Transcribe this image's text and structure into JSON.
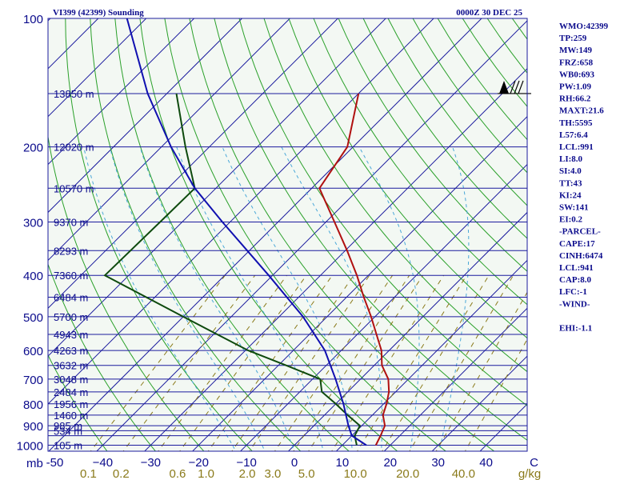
{
  "header": {
    "station": "VI399 (42399) Sounding",
    "time": "0000Z 30 DEC 25"
  },
  "indices": [
    "WMO:42399",
    "TP:259",
    "MW:149",
    "FRZ:658",
    "WB0:693",
    "PW:1.09",
    "RH:66.2",
    "MAXT:21.6",
    "TH:5595",
    "L57:6.4",
    "LCL:991",
    "LI:8.0",
    "SI:4.0",
    "TT:43",
    "KI:24",
    "SW:141",
    "EI:0.2",
    "-PARCEL-",
    "CAPE:17",
    "CINH:6474",
    "LCL:941",
    "CAP:8.0",
    "LFC:-1",
    "-WIND-",
    "",
    "EHI:-1.1"
  ],
  "colors": {
    "isobar": "#1b1b9e",
    "isotherm": "#1b1b9e",
    "dry_adiabat": "#2aa02a",
    "moist_adiabat": "#4aa8d8",
    "mixing_ratio": "#8a7a1a",
    "temperature": "#b01010",
    "dewpoint": "#0e4a0e",
    "parcel": "#1010b0",
    "panel_bg": "#f3f8f3"
  },
  "chart_data": {
    "type": "line",
    "title": "VI399 (42399) Sounding",
    "subtitle": "0000Z 30 DEC 25",
    "xlabel": "°C",
    "ylabel": "mb",
    "x_range": [
      -50,
      50
    ],
    "y_range": [
      1000,
      100
    ],
    "pressure_labels": [
      {
        "p": 100,
        "label": "100"
      },
      {
        "p": 200,
        "label": "200"
      },
      {
        "p": 300,
        "label": "300"
      },
      {
        "p": 400,
        "label": "400"
      },
      {
        "p": 500,
        "label": "500"
      },
      {
        "p": 600,
        "label": "600"
      },
      {
        "p": 700,
        "label": "700"
      },
      {
        "p": 800,
        "label": "800"
      },
      {
        "p": 900,
        "label": "900"
      },
      {
        "p": 1000,
        "label": "1000"
      }
    ],
    "mb_unit_label": "mb",
    "isobars": [
      150,
      200,
      250,
      300,
      350,
      400,
      450,
      500,
      550,
      600,
      650,
      700,
      750,
      800,
      850,
      900,
      925,
      950,
      1000
    ],
    "height_labels": [
      {
        "p": 150,
        "label": "13850 m"
      },
      {
        "p": 200,
        "label": "12020 m"
      },
      {
        "p": 250,
        "label": "10570 m"
      },
      {
        "p": 300,
        "label": "9370 m"
      },
      {
        "p": 350,
        "label": "8293 m"
      },
      {
        "p": 400,
        "label": "7360 m"
      },
      {
        "p": 450,
        "label": "6484 m"
      },
      {
        "p": 500,
        "label": "5700 m"
      },
      {
        "p": 550,
        "label": "4943 m"
      },
      {
        "p": 600,
        "label": "4263 m"
      },
      {
        "p": 650,
        "label": "3632 m"
      },
      {
        "p": 700,
        "label": "3048 m"
      },
      {
        "p": 750,
        "label": "2484 m"
      },
      {
        "p": 800,
        "label": "1956 m"
      },
      {
        "p": 850,
        "label": "1460 m"
      },
      {
        "p": 900,
        "label": "985 m"
      },
      {
        "p": 925,
        "label": "534 m"
      },
      {
        "p": 1000,
        "label": "105 m"
      }
    ],
    "temperature_ticks": [
      {
        "t": -50,
        "label": "-50"
      },
      {
        "t": -40,
        "label": "−40"
      },
      {
        "t": -30,
        "label": "−30"
      },
      {
        "t": -20,
        "label": "−20"
      },
      {
        "t": -10,
        "label": "−10"
      },
      {
        "t": 0,
        "label": "0"
      },
      {
        "t": 10,
        "label": "10"
      },
      {
        "t": 20,
        "label": "20"
      },
      {
        "t": 30,
        "label": "30"
      },
      {
        "t": 40,
        "label": "40"
      },
      {
        "t": 50,
        "label": "C"
      }
    ],
    "mixing_ratio_labels": [
      {
        "w": 0.1,
        "label": "0.1"
      },
      {
        "w": 0.2,
        "label": "0.2"
      },
      {
        "w": 0.6,
        "label": "0.6"
      },
      {
        "w": 1.0,
        "label": "1.0"
      },
      {
        "w": 2.0,
        "label": "2.0"
      },
      {
        "w": 3.0,
        "label": "3.0"
      },
      {
        "w": 5.0,
        "label": "5.0"
      },
      {
        "w": 10.0,
        "label": "10.0"
      },
      {
        "w": 20.0,
        "label": "20.0"
      },
      {
        "w": 40.0,
        "label": "40.0"
      }
    ],
    "mixing_ratio_unit": "g/kg",
    "series": [
      {
        "name": "Temperature",
        "points": [
          {
            "p": 1000,
            "t": 17.0
          },
          {
            "p": 950,
            "t": 16.0
          },
          {
            "p": 900,
            "t": 14.8
          },
          {
            "p": 850,
            "t": 12.2
          },
          {
            "p": 800,
            "t": 10.6
          },
          {
            "p": 750,
            "t": 8.6
          },
          {
            "p": 700,
            "t": 5.8
          },
          {
            "p": 650,
            "t": 1.6
          },
          {
            "p": 600,
            "t": -1.6
          },
          {
            "p": 550,
            "t": -6.0
          },
          {
            "p": 500,
            "t": -10.8
          },
          {
            "p": 450,
            "t": -16.4
          },
          {
            "p": 400,
            "t": -22.4
          },
          {
            "p": 350,
            "t": -29.6
          },
          {
            "p": 300,
            "t": -38.2
          },
          {
            "p": 250,
            "t": -48.4
          },
          {
            "p": 200,
            "t": -51.2
          },
          {
            "p": 150,
            "t": -60.0
          }
        ]
      },
      {
        "name": "Dewpoint",
        "points": [
          {
            "p": 1000,
            "t": 13.0
          },
          {
            "p": 950,
            "t": 10.6
          },
          {
            "p": 900,
            "t": 9.6
          },
          {
            "p": 850,
            "t": 4.8
          },
          {
            "p": 800,
            "t": 0.0
          },
          {
            "p": 750,
            "t": -5.4
          },
          {
            "p": 700,
            "t": -8.4
          },
          {
            "p": 650,
            "t": -18.4
          },
          {
            "p": 600,
            "t": -29.4
          },
          {
            "p": 500,
            "t": -50.0
          },
          {
            "p": 400,
            "t": -75.0
          },
          {
            "p": 300,
            "t": -74.6
          },
          {
            "p": 250,
            "t": -74.4
          },
          {
            "p": 200,
            "t": -85.0
          },
          {
            "p": 150,
            "t": -98.0
          }
        ]
      },
      {
        "name": "Parcel",
        "points": [
          {
            "p": 1000,
            "t": 15.0
          },
          {
            "p": 950,
            "t": 10.0
          },
          {
            "p": 900,
            "t": 7.2
          },
          {
            "p": 800,
            "t": 1.6
          },
          {
            "p": 700,
            "t": -5.2
          },
          {
            "p": 600,
            "t": -13.4
          },
          {
            "p": 500,
            "t": -25.0
          },
          {
            "p": 400,
            "t": -40.8
          },
          {
            "p": 300,
            "t": -61.6
          },
          {
            "p": 250,
            "t": -74.4
          },
          {
            "p": 200,
            "t": -88.0
          },
          {
            "p": 150,
            "t": -104.0
          },
          {
            "p": 100,
            "t": -124.0
          }
        ]
      }
    ],
    "wind_barb": {
      "p": 150,
      "speed_kt": 75,
      "direction_deg": 270
    }
  }
}
